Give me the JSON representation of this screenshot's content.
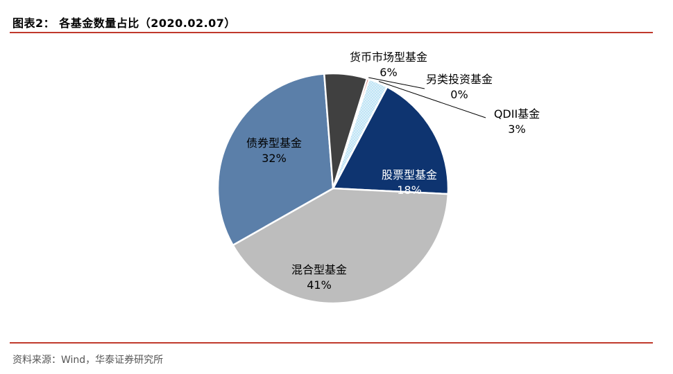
{
  "title": "图表2： 各基金数量占比（2020.02.07）",
  "source": "资料来源：Wind，华泰证券研究所",
  "chart_data": {
    "type": "pie",
    "slices": [
      {
        "name": "股票型基金",
        "value": 18,
        "label": "18%",
        "color": "#0e3470",
        "pattern": "solid",
        "label_color": "#ffffff"
      },
      {
        "name": "混合型基金",
        "value": 41,
        "label": "41%",
        "color": "#bdbdbd",
        "pattern": "solid",
        "label_color": "#000000"
      },
      {
        "name": "债券型基金",
        "value": 32,
        "label": "32%",
        "color": "#5b7fa9",
        "pattern": "solid",
        "label_color": "#000000"
      },
      {
        "name": "货币市场型基金",
        "value": 6,
        "label": "6%",
        "color": "#404040",
        "pattern": "solid",
        "label_color": "#000000"
      },
      {
        "name": "另类投资基金",
        "value": 0.3,
        "label": "0%",
        "color": "#c0392b",
        "pattern": "solid",
        "label_color": "#000000"
      },
      {
        "name": "QDII基金",
        "value": 2.7,
        "label": "3%",
        "color": "#bfe4f5",
        "pattern": "dotted",
        "label_color": "#000000"
      }
    ]
  }
}
